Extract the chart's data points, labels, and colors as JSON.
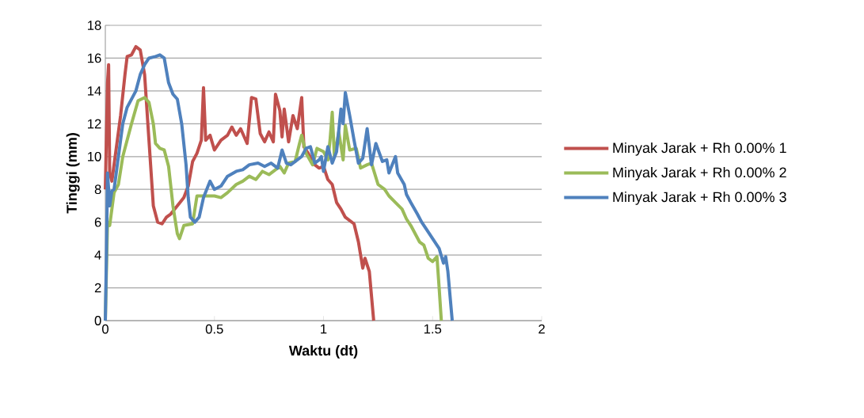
{
  "chart_data": {
    "type": "line",
    "xlabel": "Waktu (dt)",
    "ylabel": "Tinggi (mm)",
    "xlim": [
      0,
      2
    ],
    "xticks": [
      0,
      0.5,
      1,
      1.5,
      2
    ],
    "ylim": [
      0,
      18
    ],
    "yticks": [
      0,
      2,
      4,
      6,
      8,
      10,
      12,
      14,
      16,
      18
    ],
    "grid": "y",
    "legend": "right",
    "marker": "none",
    "line_style": "solid",
    "series": [
      {
        "name": "Minyak Jarak + Rh 0.00% 1",
        "color": "#c0504d",
        "x": [
          0,
          0.01,
          0.015,
          0.02,
          0.03,
          0.05,
          0.07,
          0.09,
          0.1,
          0.12,
          0.14,
          0.16,
          0.18,
          0.2,
          0.22,
          0.24,
          0.26,
          0.28,
          0.3,
          0.33,
          0.36,
          0.38,
          0.4,
          0.42,
          0.44,
          0.45,
          0.46,
          0.48,
          0.5,
          0.53,
          0.56,
          0.58,
          0.6,
          0.62,
          0.65,
          0.67,
          0.69,
          0.71,
          0.73,
          0.75,
          0.77,
          0.78,
          0.8,
          0.81,
          0.82,
          0.84,
          0.86,
          0.88,
          0.9,
          0.91,
          0.93,
          0.96,
          0.98,
          1.0,
          1.02,
          1.04,
          1.06,
          1.08,
          1.1,
          1.14,
          1.16,
          1.18,
          1.19,
          1.21,
          1.22,
          1.23
        ],
        "values": [
          8,
          14.5,
          15.6,
          9,
          8.5,
          10.5,
          12.5,
          15,
          16.1,
          16.2,
          16.7,
          16.5,
          15,
          11,
          7,
          6,
          5.9,
          6.3,
          6.5,
          7,
          7.5,
          8.2,
          9.7,
          10.2,
          11,
          14.2,
          11,
          11.3,
          10.4,
          11,
          11.3,
          11.8,
          11.3,
          11.7,
          10.8,
          13.6,
          13.5,
          11.4,
          10.9,
          11.5,
          10.9,
          13.8,
          12.8,
          11.2,
          12.9,
          10.9,
          12.5,
          11.7,
          13.6,
          10.6,
          10.2,
          9.5,
          9.3,
          9.4,
          8.6,
          8.3,
          7.2,
          6.8,
          6.3,
          5.9,
          4.8,
          3.2,
          3.8,
          3,
          1.5,
          0
        ]
      },
      {
        "name": "Minyak Jarak + Rh 0.00% 2",
        "color": "#9bbb59",
        "x": [
          0,
          0.01,
          0.02,
          0.04,
          0.06,
          0.08,
          0.12,
          0.15,
          0.18,
          0.2,
          0.22,
          0.23,
          0.25,
          0.27,
          0.29,
          0.31,
          0.33,
          0.34,
          0.36,
          0.4,
          0.42,
          0.46,
          0.5,
          0.53,
          0.56,
          0.6,
          0.63,
          0.66,
          0.69,
          0.72,
          0.75,
          0.78,
          0.8,
          0.82,
          0.84,
          0.87,
          0.89,
          0.9,
          0.92,
          0.95,
          0.97,
          1.0,
          1.02,
          1.03,
          1.04,
          1.05,
          1.07,
          1.09,
          1.1,
          1.12,
          1.15,
          1.17,
          1.2,
          1.22,
          1.25,
          1.28,
          1.3,
          1.33,
          1.36,
          1.38,
          1.4,
          1.44,
          1.46,
          1.48,
          1.5,
          1.52,
          1.53,
          1.54
        ],
        "values": [
          0,
          6,
          5.8,
          7.8,
          8.3,
          10,
          12,
          13.4,
          13.6,
          13.3,
          12,
          10.8,
          10.5,
          10.4,
          9.4,
          7,
          5.3,
          5,
          5.8,
          5.9,
          7.6,
          7.6,
          7.6,
          7.5,
          7.8,
          8.3,
          8.5,
          8.8,
          8.6,
          9.1,
          8.9,
          9.2,
          9.4,
          9,
          9.6,
          9.7,
          10.8,
          11.3,
          10.2,
          9.5,
          10.5,
          10.3,
          9.8,
          11,
          12.7,
          10,
          11.5,
          9.8,
          11.9,
          10.4,
          10.5,
          9.3,
          9.5,
          9.6,
          8.3,
          8,
          7.6,
          7.2,
          6.8,
          6.2,
          5.8,
          4.8,
          4.6,
          3.8,
          3.6,
          3.9,
          2,
          0
        ]
      },
      {
        "name": "Minyak Jarak + Rh 0.00% 3",
        "color": "#4f81bd",
        "x": [
          0,
          0.005,
          0.01,
          0.02,
          0.03,
          0.04,
          0.06,
          0.08,
          0.1,
          0.12,
          0.14,
          0.16,
          0.18,
          0.2,
          0.23,
          0.25,
          0.27,
          0.29,
          0.31,
          0.33,
          0.35,
          0.37,
          0.38,
          0.39,
          0.41,
          0.43,
          0.45,
          0.48,
          0.5,
          0.53,
          0.56,
          0.6,
          0.63,
          0.66,
          0.7,
          0.73,
          0.76,
          0.79,
          0.81,
          0.83,
          0.85,
          0.88,
          0.9,
          0.92,
          0.94,
          0.96,
          0.98,
          0.99,
          1.0,
          1.02,
          1.04,
          1.06,
          1.08,
          1.09,
          1.1,
          1.12,
          1.14,
          1.16,
          1.18,
          1.2,
          1.22,
          1.24,
          1.27,
          1.29,
          1.3,
          1.33,
          1.34,
          1.37,
          1.38,
          1.4,
          1.43,
          1.45,
          1.47,
          1.5,
          1.53,
          1.55,
          1.56,
          1.57,
          1.58,
          1.59
        ],
        "values": [
          0,
          4,
          9,
          7,
          7.9,
          8,
          10,
          12,
          13,
          13.5,
          14,
          15,
          15.6,
          16,
          16.1,
          16.2,
          16,
          14.5,
          13.8,
          13.5,
          12,
          9.5,
          7.5,
          6.3,
          6,
          6.3,
          7.5,
          8.5,
          8,
          8.2,
          8.8,
          9.1,
          9.2,
          9.5,
          9.6,
          9.4,
          9.6,
          9.3,
          10.4,
          9.6,
          9.5,
          9.8,
          10,
          10.5,
          10.6,
          9.6,
          9.8,
          10,
          9.1,
          10.6,
          9.6,
          10.3,
          12.9,
          12,
          13.9,
          12.5,
          11,
          9.6,
          9.9,
          11.7,
          9.5,
          10.8,
          9.7,
          9.8,
          9,
          10,
          9,
          8.3,
          7.7,
          7.2,
          6.5,
          6,
          5.6,
          5,
          4.4,
          3.5,
          3.9,
          3,
          1.5,
          0
        ]
      }
    ]
  }
}
